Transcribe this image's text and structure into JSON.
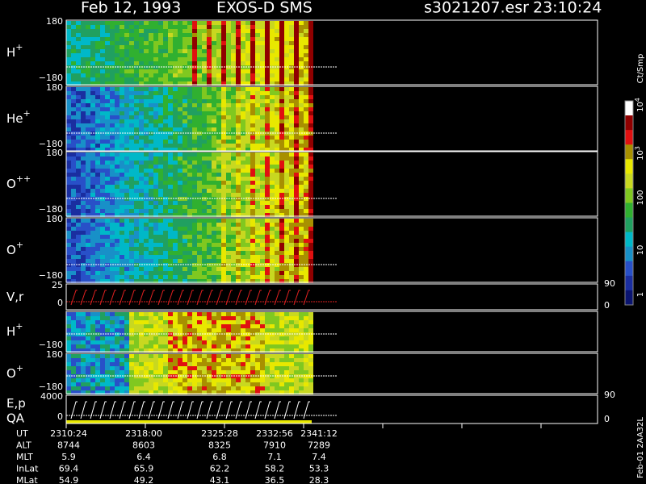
{
  "header": {
    "date": "Feb 12, 1993",
    "instrument": "EXOS-D SMS",
    "file": "s3021207.esr",
    "time": "23:10:24"
  },
  "panels": [
    {
      "label": "H",
      "sup": "+",
      "top": "180",
      "bottom": "−180"
    },
    {
      "label": "He",
      "sup": "+",
      "top": "180",
      "bottom": "−180"
    },
    {
      "label": "O",
      "sup": "++",
      "top": "180",
      "bottom": "−180"
    },
    {
      "label": "O",
      "sup": "+",
      "top": "180",
      "bottom": "−180"
    },
    {
      "label": "V,r",
      "top": "25",
      "bottom": "0",
      "right_top": "90",
      "right_bottom": "0"
    },
    {
      "label": "H",
      "sup": "+",
      "bottom": "−180"
    },
    {
      "label": "O",
      "sup": "+",
      "top": "180",
      "bottom": "−180"
    },
    {
      "label": "E,p",
      "label2": "QA",
      "top": "4000",
      "bottom": "0",
      "right_top": "90",
      "right_bottom": "0"
    }
  ],
  "colorbar": {
    "unit": "Ct/Smp",
    "ticks": [
      {
        "base": "10",
        "exp": "4"
      },
      {
        "base": "10",
        "exp": "3"
      },
      {
        "base": "100"
      },
      {
        "base": "10"
      },
      {
        "base": "1"
      }
    ]
  },
  "footer_rows": [
    {
      "name": "UT",
      "values": [
        "2310:24",
        "2318:00",
        "2325:28",
        "2332:56",
        "2341:12"
      ]
    },
    {
      "name": "ALT",
      "values": [
        "8744",
        "8603",
        "8325",
        "7910",
        "7289"
      ]
    },
    {
      "name": "MLT",
      "values": [
        "5.9",
        "6.4",
        "6.8",
        "7.1",
        "7.4"
      ]
    },
    {
      "name": "InLat",
      "values": [
        "69.4",
        "65.9",
        "62.2",
        "58.2",
        "53.3"
      ]
    },
    {
      "name": "MLat",
      "values": [
        "54.9",
        "49.2",
        "43.1",
        "36.5",
        "28.3"
      ]
    }
  ],
  "side_label": "Feb-01 2AA32L"
}
